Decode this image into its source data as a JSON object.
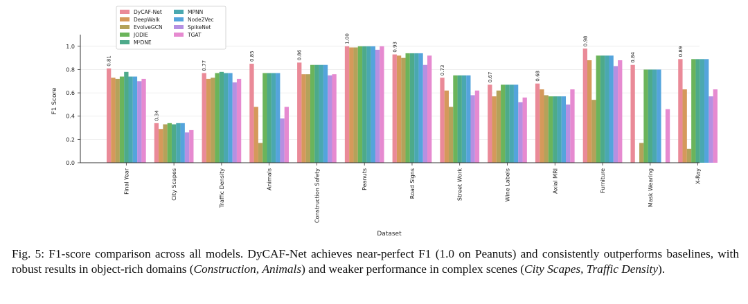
{
  "chart_data": {
    "type": "bar",
    "title": "",
    "xlabel": "Dataset",
    "ylabel": "F1 Score",
    "ylim": [
      0,
      1.1
    ],
    "yticks": [
      "0.0",
      "0.2",
      "0.4",
      "0.6",
      "0.8",
      "1.0"
    ],
    "grid": true,
    "legend_position": "top-left",
    "categories": [
      "Final Year",
      "City Scapes",
      "Traffic Density",
      "Animals",
      "Construction Safety",
      "Peanuts",
      "Road Signs",
      "Street Work",
      "Wine Labels",
      "Axial MRI",
      "Furniture",
      "Mask Wearing",
      "X-Ray"
    ],
    "annotation_series": "DyCAF-Net",
    "annotations": [
      "0.81",
      "0.34",
      "0.77",
      "0.85",
      "0.86",
      "1.00",
      "0.93",
      "0.73",
      "0.67",
      "0.68",
      "0.98",
      "0.84",
      "0.89"
    ],
    "series": [
      {
        "name": "DyCAF-Net",
        "color": "#ea8a98",
        "values": [
          0.81,
          0.34,
          0.77,
          0.85,
          0.86,
          1.0,
          0.93,
          0.73,
          0.67,
          0.68,
          0.98,
          0.84,
          0.89
        ]
      },
      {
        "name": "DeepWalk",
        "color": "#d5995b",
        "values": [
          0.73,
          0.29,
          0.72,
          0.48,
          0.76,
          0.99,
          0.92,
          0.62,
          0.57,
          0.63,
          0.88,
          0.0,
          0.63
        ]
      },
      {
        "name": "EvolveGCN",
        "color": "#b4a25a",
        "values": [
          0.72,
          0.33,
          0.73,
          0.17,
          0.76,
          0.99,
          0.9,
          0.48,
          0.62,
          0.58,
          0.54,
          0.17,
          0.12
        ]
      },
      {
        "name": "JODIE",
        "color": "#6bb45b",
        "values": [
          0.74,
          0.34,
          0.77,
          0.77,
          0.84,
          1.0,
          0.94,
          0.75,
          0.67,
          0.57,
          0.92,
          0.8,
          0.89
        ]
      },
      {
        "name": "M²DNE",
        "color": "#4daa8a",
        "values": [
          0.78,
          0.33,
          0.78,
          0.77,
          0.84,
          1.0,
          0.94,
          0.75,
          0.67,
          0.57,
          0.92,
          0.8,
          0.89
        ]
      },
      {
        "name": "MPNN",
        "color": "#4aa8b0",
        "values": [
          0.74,
          0.34,
          0.77,
          0.77,
          0.84,
          1.0,
          0.94,
          0.75,
          0.67,
          0.57,
          0.92,
          0.8,
          0.89
        ]
      },
      {
        "name": "Node2Vec",
        "color": "#54a4dc",
        "values": [
          0.74,
          0.34,
          0.77,
          0.77,
          0.84,
          1.0,
          0.94,
          0.75,
          0.67,
          0.57,
          0.92,
          0.8,
          0.89
        ]
      },
      {
        "name": "SpikeNet",
        "color": "#b590e2",
        "values": [
          0.7,
          0.26,
          0.69,
          0.38,
          0.75,
          0.97,
          0.84,
          0.58,
          0.52,
          0.5,
          0.83,
          0.0,
          0.57
        ]
      },
      {
        "name": "TGAT",
        "color": "#e68ad0",
        "values": [
          0.72,
          0.28,
          0.72,
          0.48,
          0.76,
          1.0,
          0.92,
          0.62,
          0.56,
          0.63,
          0.88,
          0.46,
          0.63
        ]
      }
    ]
  },
  "caption": {
    "label": "Fig. 5:",
    "text1": " F1-score comparison across all models. DyCAF-Net achieves near-perfect F1 (1.0 on Peanuts) and consistently outperforms baselines, with robust results in object-rich domains (",
    "it1": "Construction",
    "text2": ", ",
    "it2": "Animals",
    "text3": ") and weaker performance in complex scenes (",
    "it3": "City Scapes",
    "text4": ", ",
    "it4": "Traffic Density",
    "text5": ")."
  }
}
